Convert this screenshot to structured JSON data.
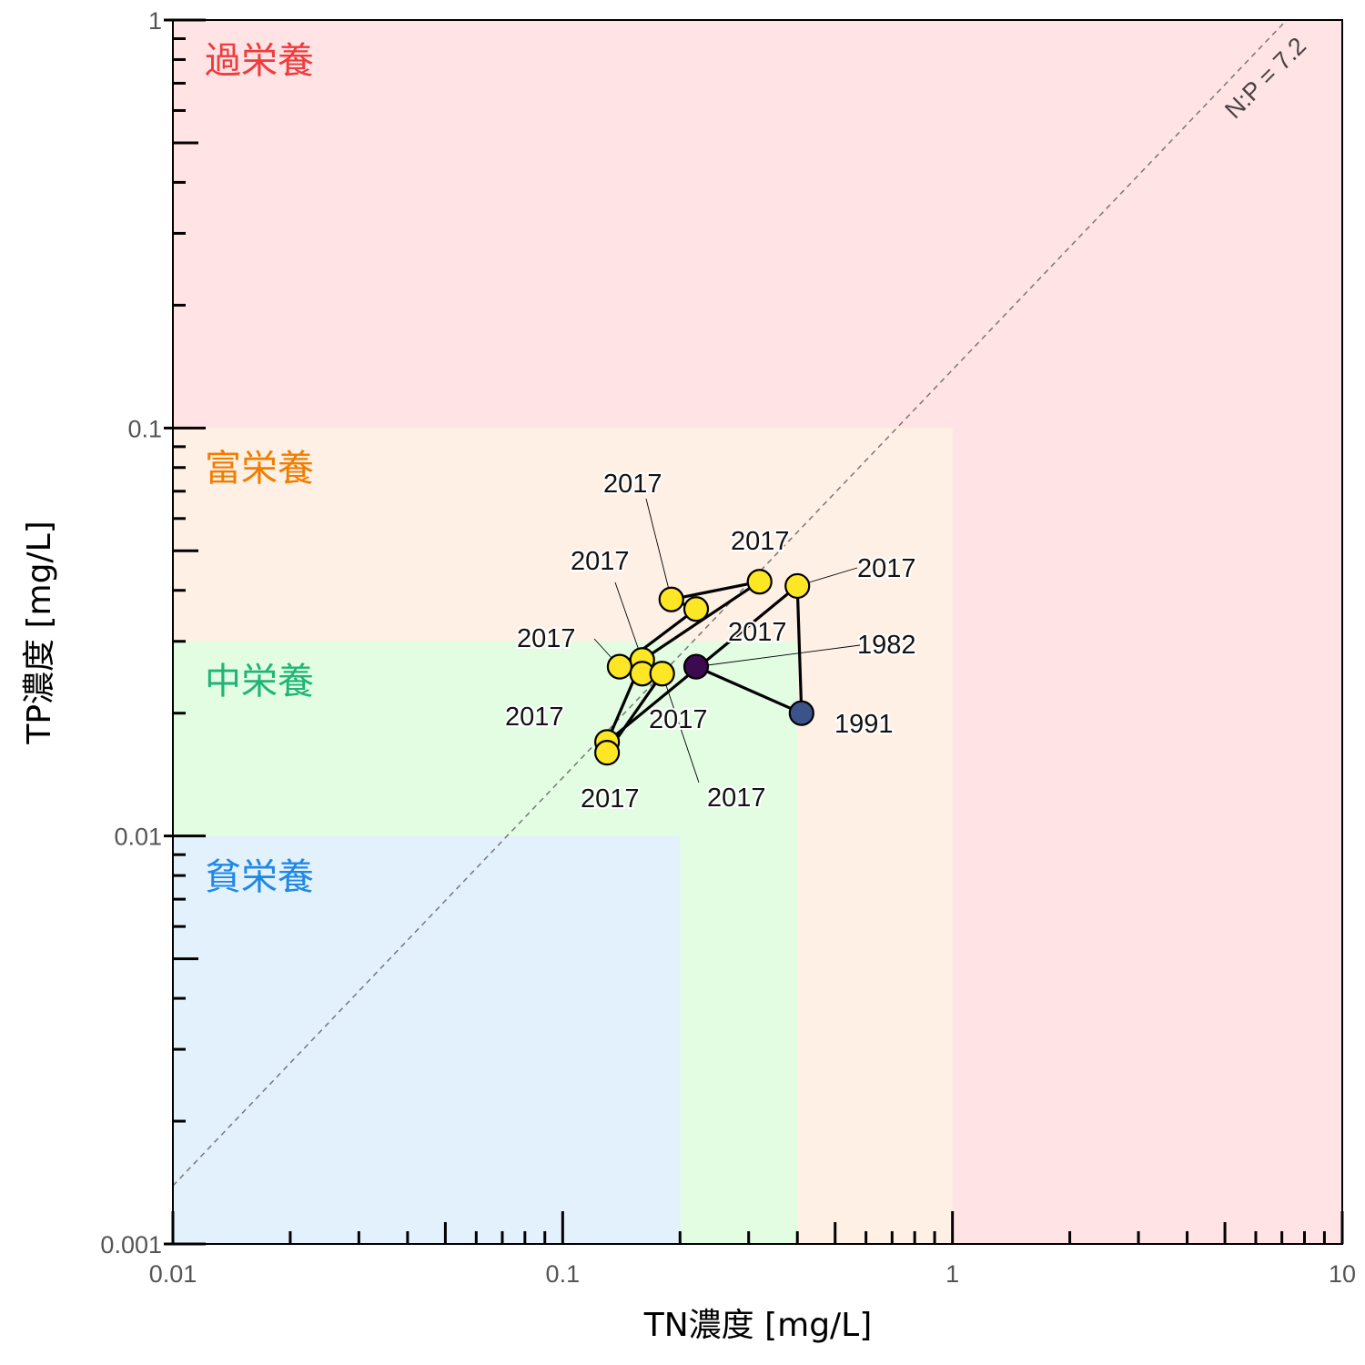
{
  "chart_data": {
    "type": "scatter",
    "xlabel": "TN濃度 [mg/L]",
    "ylabel": "TP濃度 [mg/L]",
    "x_scale": "log",
    "y_scale": "log",
    "xlim": [
      0.01,
      10
    ],
    "ylim": [
      0.001,
      1
    ],
    "x_ticks": [
      {
        "value": 0.01,
        "label": "0.01"
      },
      {
        "value": 0.1,
        "label": "0.1"
      },
      {
        "value": 1,
        "label": "1"
      },
      {
        "value": 10,
        "label": "10"
      }
    ],
    "y_ticks": [
      {
        "value": 0.001,
        "label": "0.001"
      },
      {
        "value": 0.01,
        "label": "0.01"
      },
      {
        "value": 0.1,
        "label": "0.1"
      },
      {
        "value": 1,
        "label": "1"
      }
    ],
    "grid": false,
    "zones": [
      {
        "name": "過栄養",
        "tn_max": 10,
        "tp_max": 1,
        "fill": "#ffe3e5",
        "text_color": "#ef3b3b"
      },
      {
        "name": "富栄養",
        "tn_max": 1,
        "tp_max": 0.1,
        "fill": "#fff0e5",
        "text_color": "#f07d00"
      },
      {
        "name": "中栄養",
        "tn_max": 0.4,
        "tp_max": 0.03,
        "fill": "#e3fde3",
        "text_color": "#1fb577"
      },
      {
        "name": "貧栄養",
        "tn_max": 0.2,
        "tp_max": 0.01,
        "fill": "#e3f1fd",
        "text_color": "#1e88e5"
      }
    ],
    "reference_line": {
      "label": "N:P = 7.2",
      "ratio": 7.2,
      "color": "#777777"
    },
    "points": [
      {
        "tn": 0.22,
        "tp": 0.026,
        "label": "1982",
        "color": "#3d0a4f"
      },
      {
        "tn": 0.41,
        "tp": 0.02,
        "label": "1991",
        "color": "#3b528b"
      },
      {
        "tn": 0.4,
        "tp": 0.041,
        "label": "2017",
        "color": "#fde725"
      },
      {
        "tn": 0.13,
        "tp": 0.017,
        "label": "2017",
        "color": "#fde725"
      },
      {
        "tn": 0.16,
        "tp": 0.027,
        "label": "2017",
        "color": "#fde725"
      },
      {
        "tn": 0.32,
        "tp": 0.042,
        "label": "2017",
        "color": "#fde725"
      },
      {
        "tn": 0.19,
        "tp": 0.038,
        "label": "2017",
        "color": "#fde725"
      },
      {
        "tn": 0.22,
        "tp": 0.036,
        "label": "2017",
        "color": "#fde725"
      },
      {
        "tn": 0.14,
        "tp": 0.026,
        "label": "2017",
        "color": "#fde725"
      },
      {
        "tn": 0.16,
        "tp": 0.025,
        "label": "2017",
        "color": "#fde725"
      },
      {
        "tn": 0.18,
        "tp": 0.025,
        "label": "2017",
        "color": "#fde725"
      },
      {
        "tn": 0.13,
        "tp": 0.016,
        "label": "2017",
        "color": "#fde725"
      }
    ],
    "path_order": [
      0,
      1,
      2,
      3,
      4,
      5,
      6,
      7,
      8,
      9,
      10,
      11
    ]
  }
}
